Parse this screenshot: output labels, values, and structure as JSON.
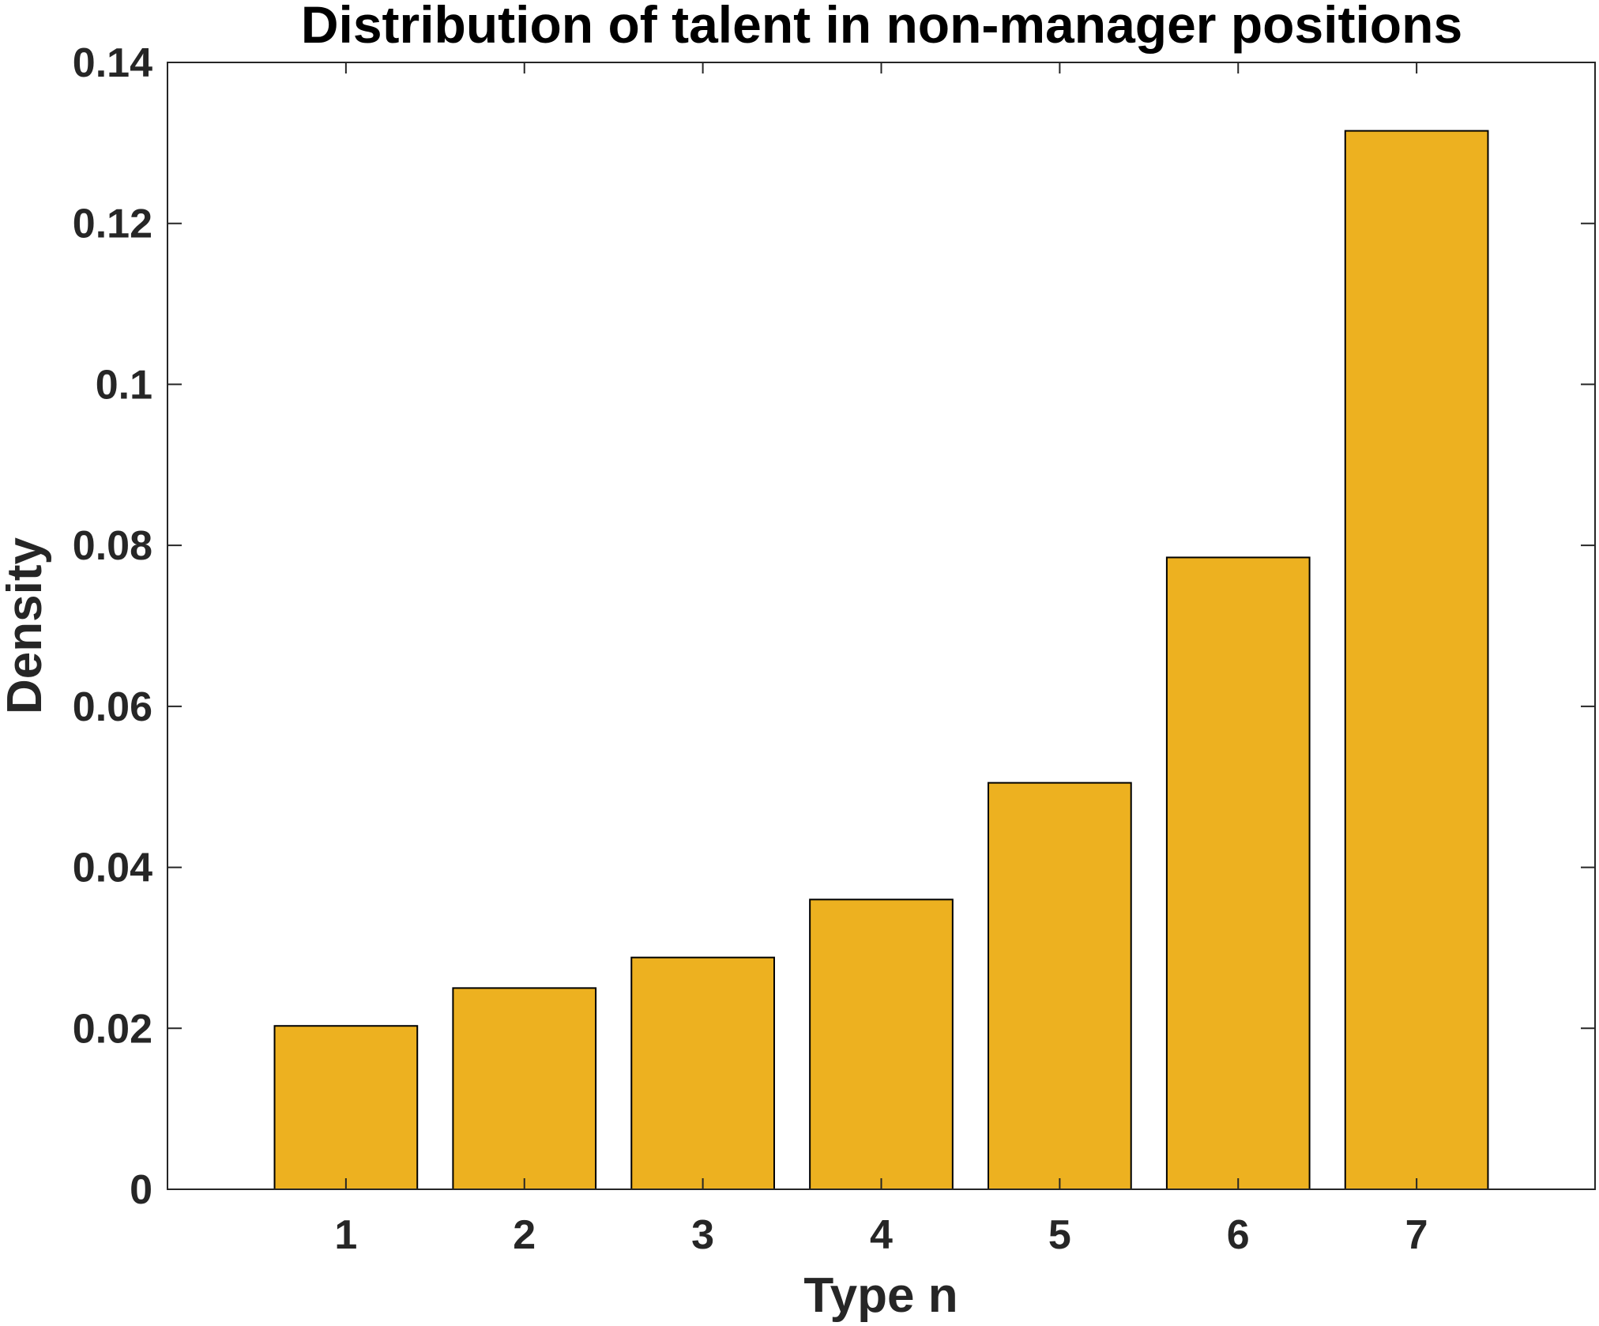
{
  "chart_data": {
    "type": "bar",
    "title": "Distribution of talent in non-manager positions",
    "xlabel": "Type n",
    "ylabel": "Density",
    "categories": [
      "1",
      "2",
      "3",
      "4",
      "5",
      "6",
      "7"
    ],
    "values": [
      0.0203,
      0.025,
      0.0288,
      0.036,
      0.0505,
      0.0785,
      0.1315
    ],
    "ylim": [
      0,
      0.14
    ],
    "xlim": [
      0,
      8
    ],
    "yticks": [
      0,
      0.02,
      0.04,
      0.06,
      0.08,
      0.1,
      0.12,
      0.14
    ],
    "yticklabels": [
      "0",
      "0.02",
      "0.04",
      "0.06",
      "0.08",
      "0.1",
      "0.12",
      "0.14"
    ],
    "grid": false,
    "bar_color": "#EDB120",
    "bar_edge_color": "#000000"
  }
}
